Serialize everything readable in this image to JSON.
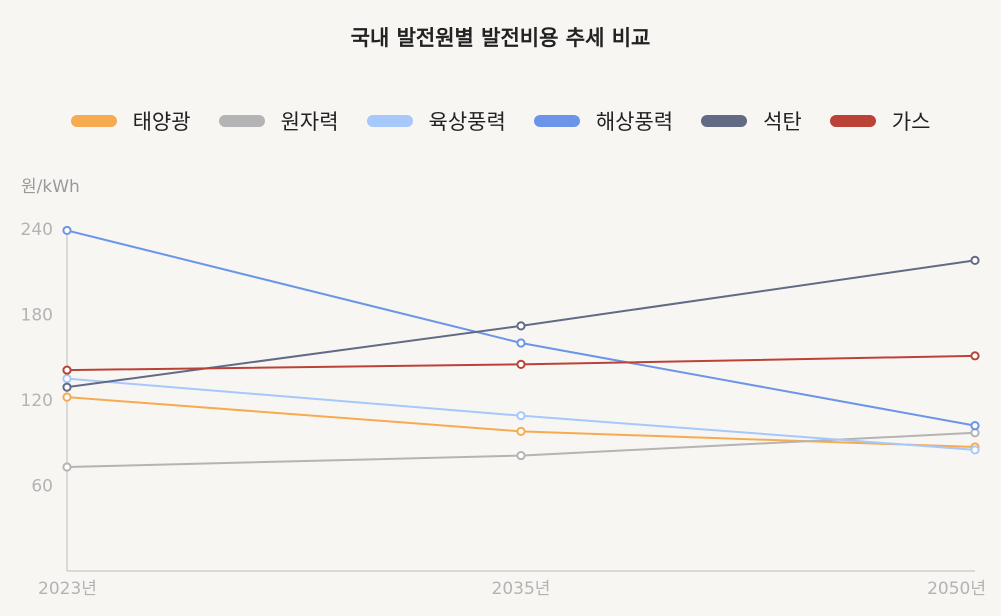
{
  "chart_data": {
    "type": "line",
    "title": "국내 발전원별 발전비용 추세 비교",
    "ylabel": "원/kWh",
    "xlabel": "",
    "categories": [
      "2023년",
      "2035년",
      "2050년"
    ],
    "yticks": [
      60,
      120,
      180,
      240
    ],
    "ylim": [
      0,
      240
    ],
    "grid": false,
    "legend_position": "top",
    "series": [
      {
        "name": "태양광",
        "color": "#f6ab50",
        "values": [
          122,
          98,
          87
        ]
      },
      {
        "name": "원자력",
        "color": "#b4b4b4",
        "values": [
          73,
          81,
          97
        ]
      },
      {
        "name": "육상풍력",
        "color": "#a6c8fb",
        "values": [
          135,
          109,
          85
        ]
      },
      {
        "name": "해상풍력",
        "color": "#6a95e8",
        "values": [
          239,
          160,
          102
        ]
      },
      {
        "name": "석탄",
        "color": "#626a84",
        "values": [
          129,
          172,
          218
        ]
      },
      {
        "name": "가스",
        "color": "#bb4237",
        "values": [
          141,
          145,
          151
        ]
      }
    ]
  }
}
